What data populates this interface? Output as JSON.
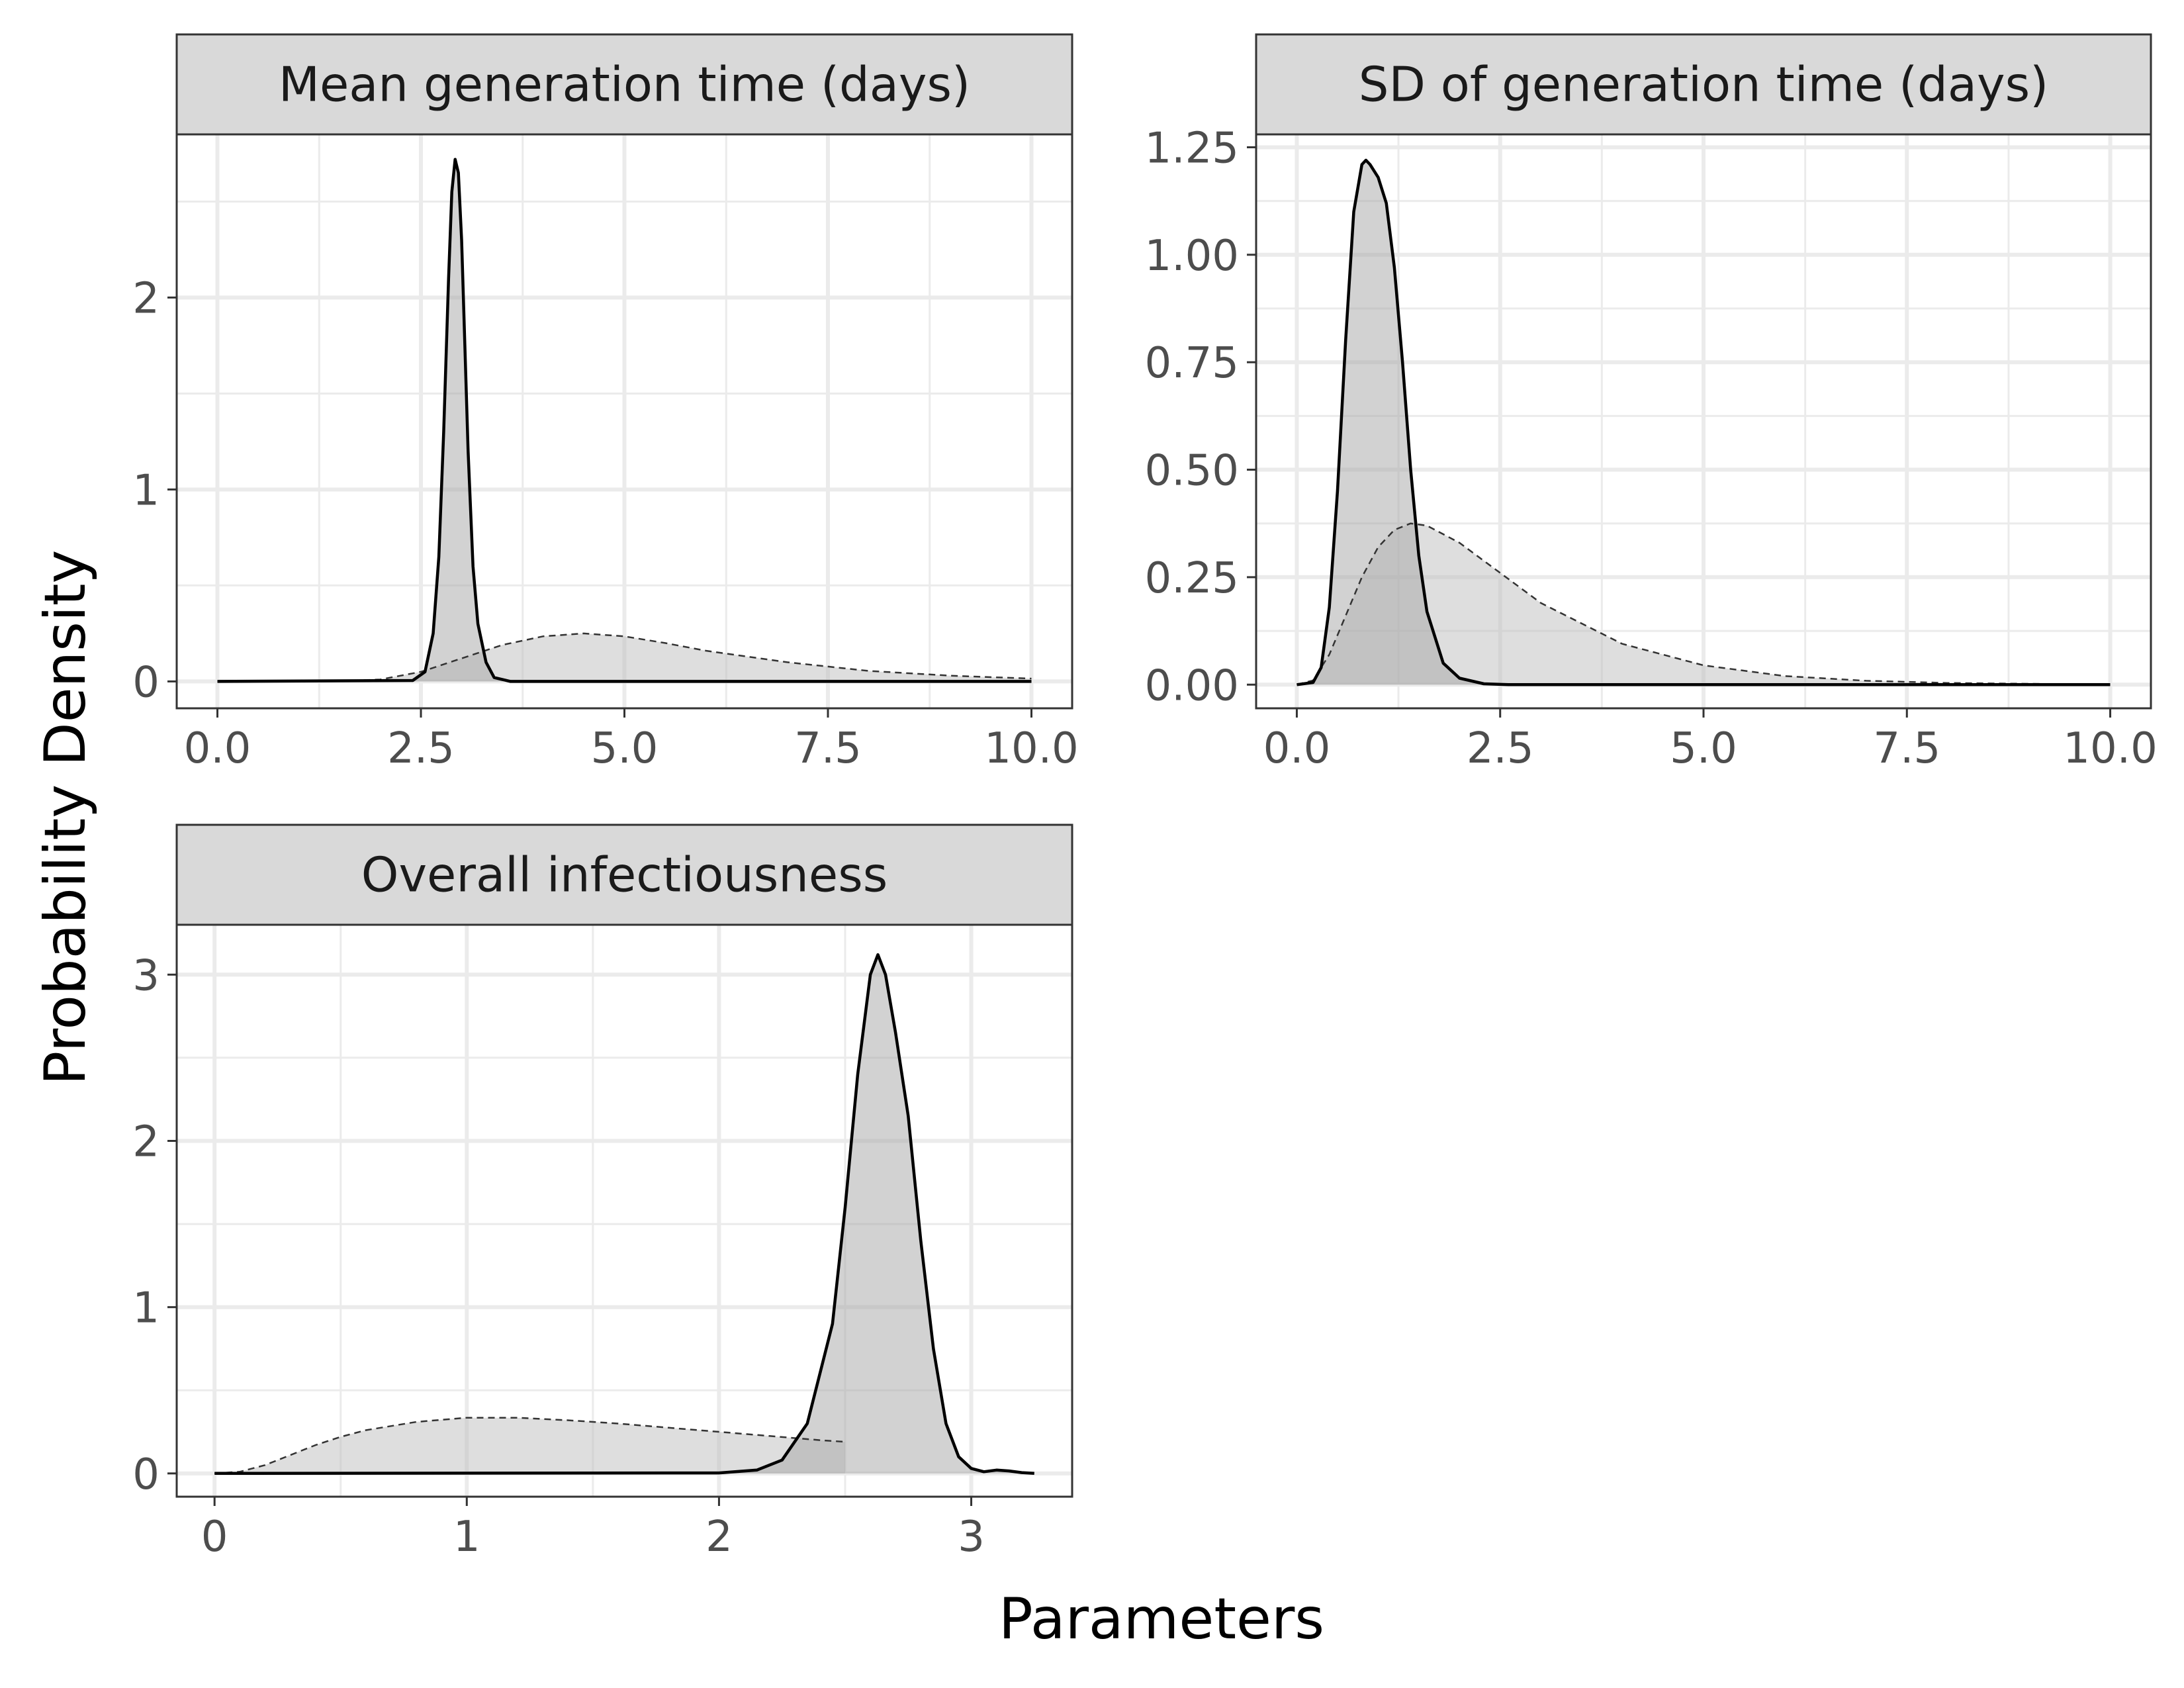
{
  "figure": {
    "xlabel": "Parameters",
    "ylabel": "Probability Density"
  },
  "chart_data": [
    {
      "type": "area",
      "title": "Mean generation time (days)",
      "xlim": [
        -0.5,
        10.5
      ],
      "ylim": [
        -0.14,
        2.85
      ],
      "x_ticks": [
        0,
        2.5,
        5,
        7.5,
        10
      ],
      "x_tick_labels": [
        "0.0",
        "2.5",
        "5.0",
        "7.5",
        "10.0"
      ],
      "y_ticks": [
        0,
        1,
        2
      ],
      "y_tick_labels": [
        "0",
        "1",
        "2"
      ],
      "grid": true,
      "series": [
        {
          "style": "dashed",
          "x": [
            0,
            1.5,
            2.0,
            2.5,
            3.0,
            3.5,
            4.0,
            4.5,
            5.0,
            5.5,
            6.0,
            7.0,
            8.0,
            9.0,
            10.0
          ],
          "y": [
            0,
            0.002,
            0.01,
            0.05,
            0.12,
            0.19,
            0.235,
            0.25,
            0.235,
            0.2,
            0.16,
            0.1,
            0.055,
            0.03,
            0.015
          ]
        },
        {
          "style": "solid",
          "x": [
            0,
            2.4,
            2.55,
            2.65,
            2.72,
            2.78,
            2.84,
            2.88,
            2.92,
            2.96,
            3.0,
            3.04,
            3.08,
            3.14,
            3.2,
            3.3,
            3.4,
            3.6,
            10.0
          ],
          "y": [
            0,
            0.005,
            0.05,
            0.25,
            0.65,
            1.3,
            2.1,
            2.55,
            2.72,
            2.65,
            2.3,
            1.75,
            1.2,
            0.6,
            0.3,
            0.1,
            0.02,
            0,
            0
          ]
        }
      ]
    },
    {
      "type": "area",
      "title": "SD of generation time (days)",
      "xlim": [
        -0.5,
        10.5
      ],
      "ylim": [
        -0.055,
        1.28
      ],
      "x_ticks": [
        0,
        2.5,
        5,
        7.5,
        10
      ],
      "x_tick_labels": [
        "0.0",
        "2.5",
        "5.0",
        "7.5",
        "10.0"
      ],
      "y_ticks": [
        0,
        0.25,
        0.5,
        0.75,
        1.0,
        1.25
      ],
      "y_tick_labels": [
        "0.00",
        "0.25",
        "0.50",
        "0.75",
        "1.00",
        "1.25"
      ],
      "grid": true,
      "series": [
        {
          "style": "dashed",
          "x": [
            0,
            0.2,
            0.4,
            0.6,
            0.8,
            1.0,
            1.2,
            1.4,
            1.6,
            2.0,
            2.5,
            3.0,
            4.0,
            5.0,
            6.0,
            7.0,
            8.0,
            9.0,
            9.5
          ],
          "y": [
            0,
            0.01,
            0.07,
            0.16,
            0.25,
            0.32,
            0.36,
            0.375,
            0.37,
            0.33,
            0.26,
            0.19,
            0.095,
            0.045,
            0.02,
            0.009,
            0.004,
            0.002,
            0.001
          ]
        },
        {
          "style": "solid",
          "x": [
            0,
            0.2,
            0.3,
            0.4,
            0.5,
            0.6,
            0.7,
            0.8,
            0.85,
            0.9,
            1.0,
            1.1,
            1.2,
            1.3,
            1.4,
            1.5,
            1.6,
            1.8,
            2.0,
            2.3,
            2.6,
            10.0
          ],
          "y": [
            0,
            0.005,
            0.04,
            0.18,
            0.45,
            0.8,
            1.1,
            1.21,
            1.22,
            1.21,
            1.18,
            1.12,
            0.97,
            0.75,
            0.5,
            0.3,
            0.17,
            0.05,
            0.015,
            0.002,
            0,
            0
          ]
        }
      ]
    },
    {
      "type": "area",
      "title": "Overall infectiousness",
      "xlim": [
        -0.15,
        3.4
      ],
      "ylim": [
        -0.14,
        3.3
      ],
      "x_ticks": [
        0,
        1,
        2,
        3
      ],
      "x_tick_labels": [
        "0",
        "1",
        "2",
        "3"
      ],
      "y_ticks": [
        0,
        1,
        2,
        3
      ],
      "y_tick_labels": [
        "0",
        "1",
        "2",
        "3"
      ],
      "grid": true,
      "series": [
        {
          "style": "dashed",
          "x": [
            0,
            0.1,
            0.2,
            0.3,
            0.4,
            0.5,
            0.6,
            0.8,
            1.0,
            1.2,
            1.4,
            1.6,
            1.8,
            2.0,
            2.2,
            2.4,
            2.5
          ],
          "y": [
            0,
            0.01,
            0.05,
            0.11,
            0.17,
            0.22,
            0.26,
            0.31,
            0.335,
            0.335,
            0.32,
            0.3,
            0.275,
            0.25,
            0.225,
            0.2,
            0.19
          ]
        },
        {
          "style": "solid",
          "x": [
            0,
            2.0,
            2.15,
            2.25,
            2.35,
            2.45,
            2.5,
            2.55,
            2.6,
            2.63,
            2.66,
            2.7,
            2.75,
            2.8,
            2.85,
            2.9,
            2.95,
            3.0,
            3.05,
            3.1,
            3.15,
            3.2,
            3.25
          ],
          "y": [
            0,
            0.003,
            0.02,
            0.08,
            0.3,
            0.9,
            1.6,
            2.4,
            3.0,
            3.12,
            3.0,
            2.65,
            2.15,
            1.4,
            0.75,
            0.3,
            0.1,
            0.03,
            0.01,
            0.02,
            0.015,
            0.005,
            0
          ]
        }
      ]
    }
  ]
}
